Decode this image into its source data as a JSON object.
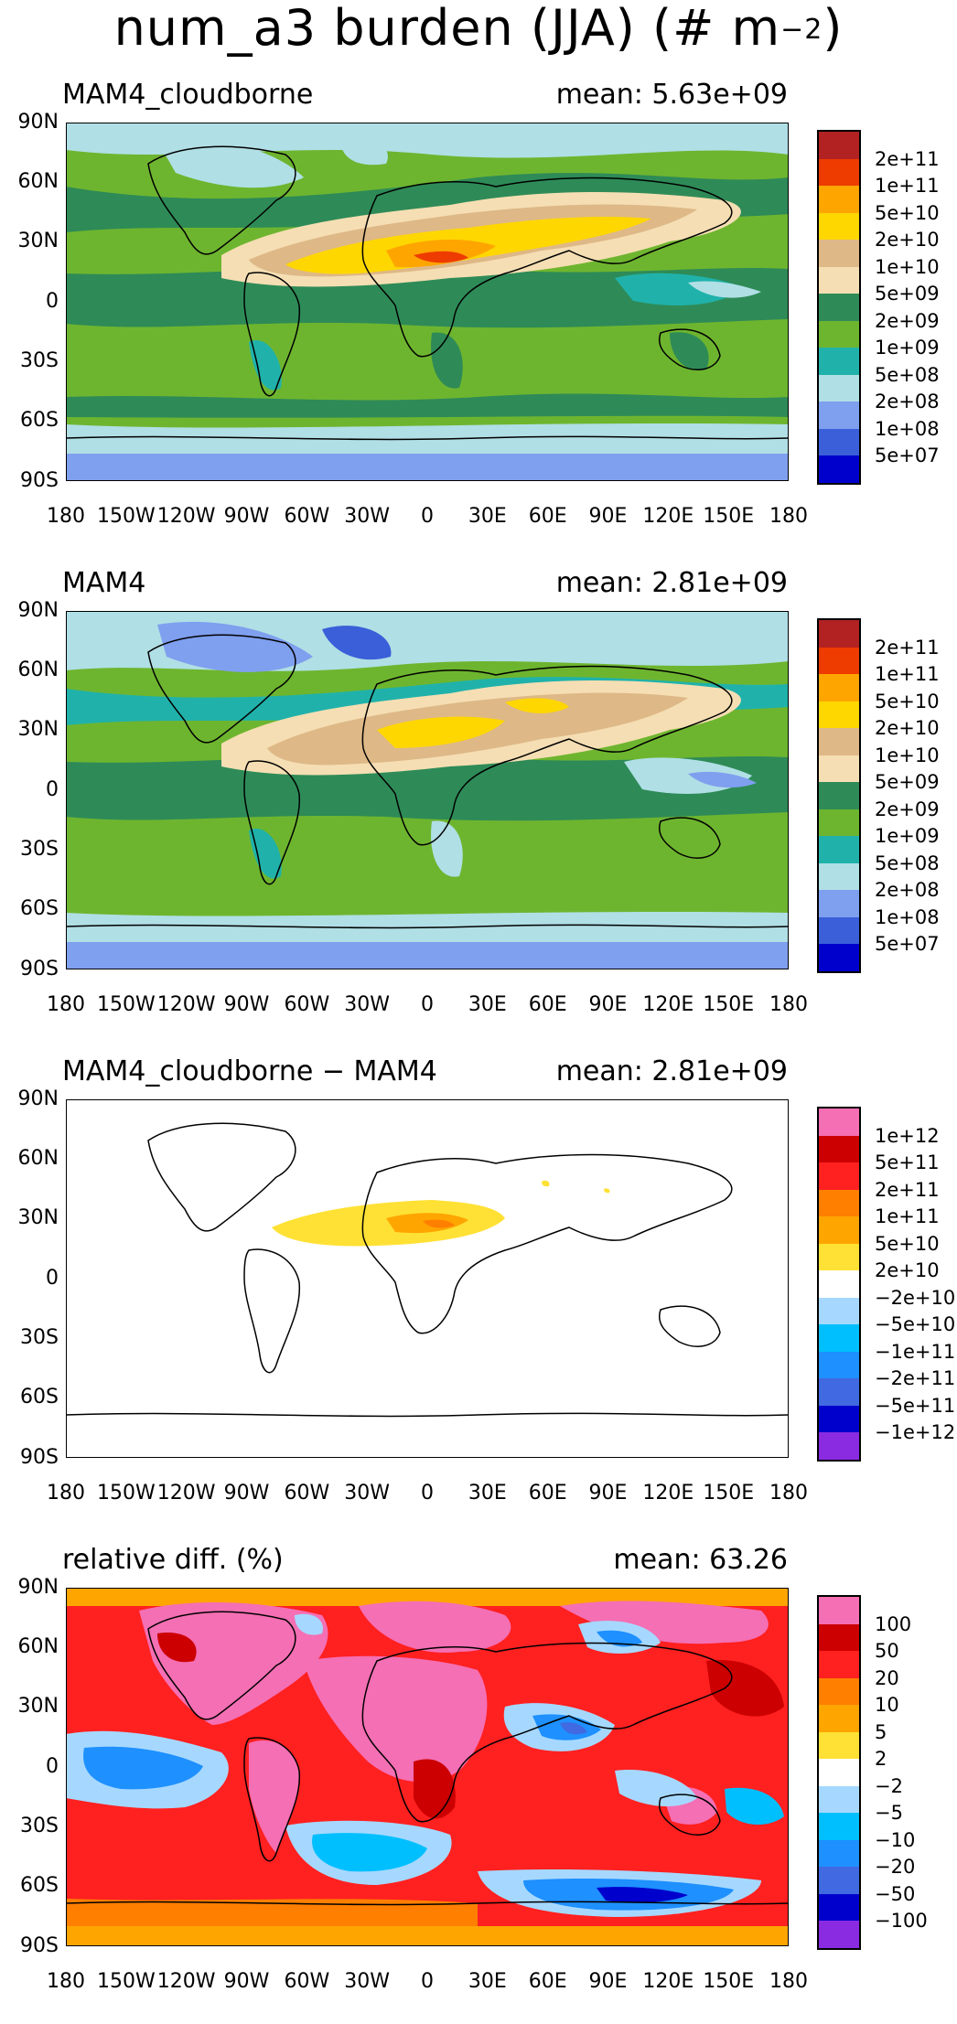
{
  "figure": {
    "title_main": "num_a3 burden (JJA) (# m",
    "title_exp": "−2",
    "title_end": ")"
  },
  "axes": {
    "lat_labels": [
      "90N",
      "60N",
      "30N",
      "0",
      "30S",
      "60S",
      "90S"
    ],
    "lon_labels": [
      "180",
      "150W",
      "120W",
      "90W",
      "60W",
      "30W",
      "0",
      "30E",
      "60E",
      "90E",
      "120E",
      "150E",
      "180"
    ]
  },
  "colors": {
    "burden": [
      "#b22222",
      "#ee3b00",
      "#ffa500",
      "#ffd700",
      "#deb887",
      "#f5deb3",
      "#2e8b57",
      "#6eb52f",
      "#20b2aa",
      "#b0dfe5",
      "#7f9fef",
      "#3a5fd9",
      "#0000cd"
    ],
    "diff": [
      "#f46fb4",
      "#cc0000",
      "#ff2020",
      "#ff7f00",
      "#ffa500",
      "#ffe135",
      "#ffffff",
      "#a6d8ff",
      "#00bfff",
      "#1e90ff",
      "#4169e1",
      "#0000cd",
      "#8a2be2"
    ]
  },
  "panels": [
    {
      "title": "MAM4_cloudborne",
      "mean": "mean: 5.63e+09",
      "scale": "burden",
      "colorbar_labels": [
        "2e+11",
        "1e+11",
        "5e+10",
        "2e+10",
        "1e+10",
        "5e+09",
        "2e+09",
        "1e+09",
        "5e+08",
        "2e+08",
        "1e+08",
        "5e+07"
      ]
    },
    {
      "title": "MAM4",
      "mean": "mean: 2.81e+09",
      "scale": "burden",
      "colorbar_labels": [
        "2e+11",
        "1e+11",
        "5e+10",
        "2e+10",
        "1e+10",
        "5e+09",
        "2e+09",
        "1e+09",
        "5e+08",
        "2e+08",
        "1e+08",
        "5e+07"
      ]
    },
    {
      "title": "MAM4_cloudborne − MAM4",
      "mean": "mean: 2.81e+09",
      "scale": "diff",
      "colorbar_labels": [
        "1e+12",
        "5e+11",
        "2e+11",
        "1e+11",
        "5e+10",
        "2e+10",
        "−2e+10",
        "−5e+10",
        "−1e+11",
        "−2e+11",
        "−5e+11",
        "−1e+12"
      ]
    },
    {
      "title": "relative diff. (%)",
      "mean": "mean: 63.26",
      "scale": "diff",
      "colorbar_labels": [
        "100",
        "50",
        "20",
        "10",
        "5",
        "2",
        "−2",
        "−5",
        "−10",
        "−20",
        "−50",
        "−100"
      ]
    }
  ]
}
